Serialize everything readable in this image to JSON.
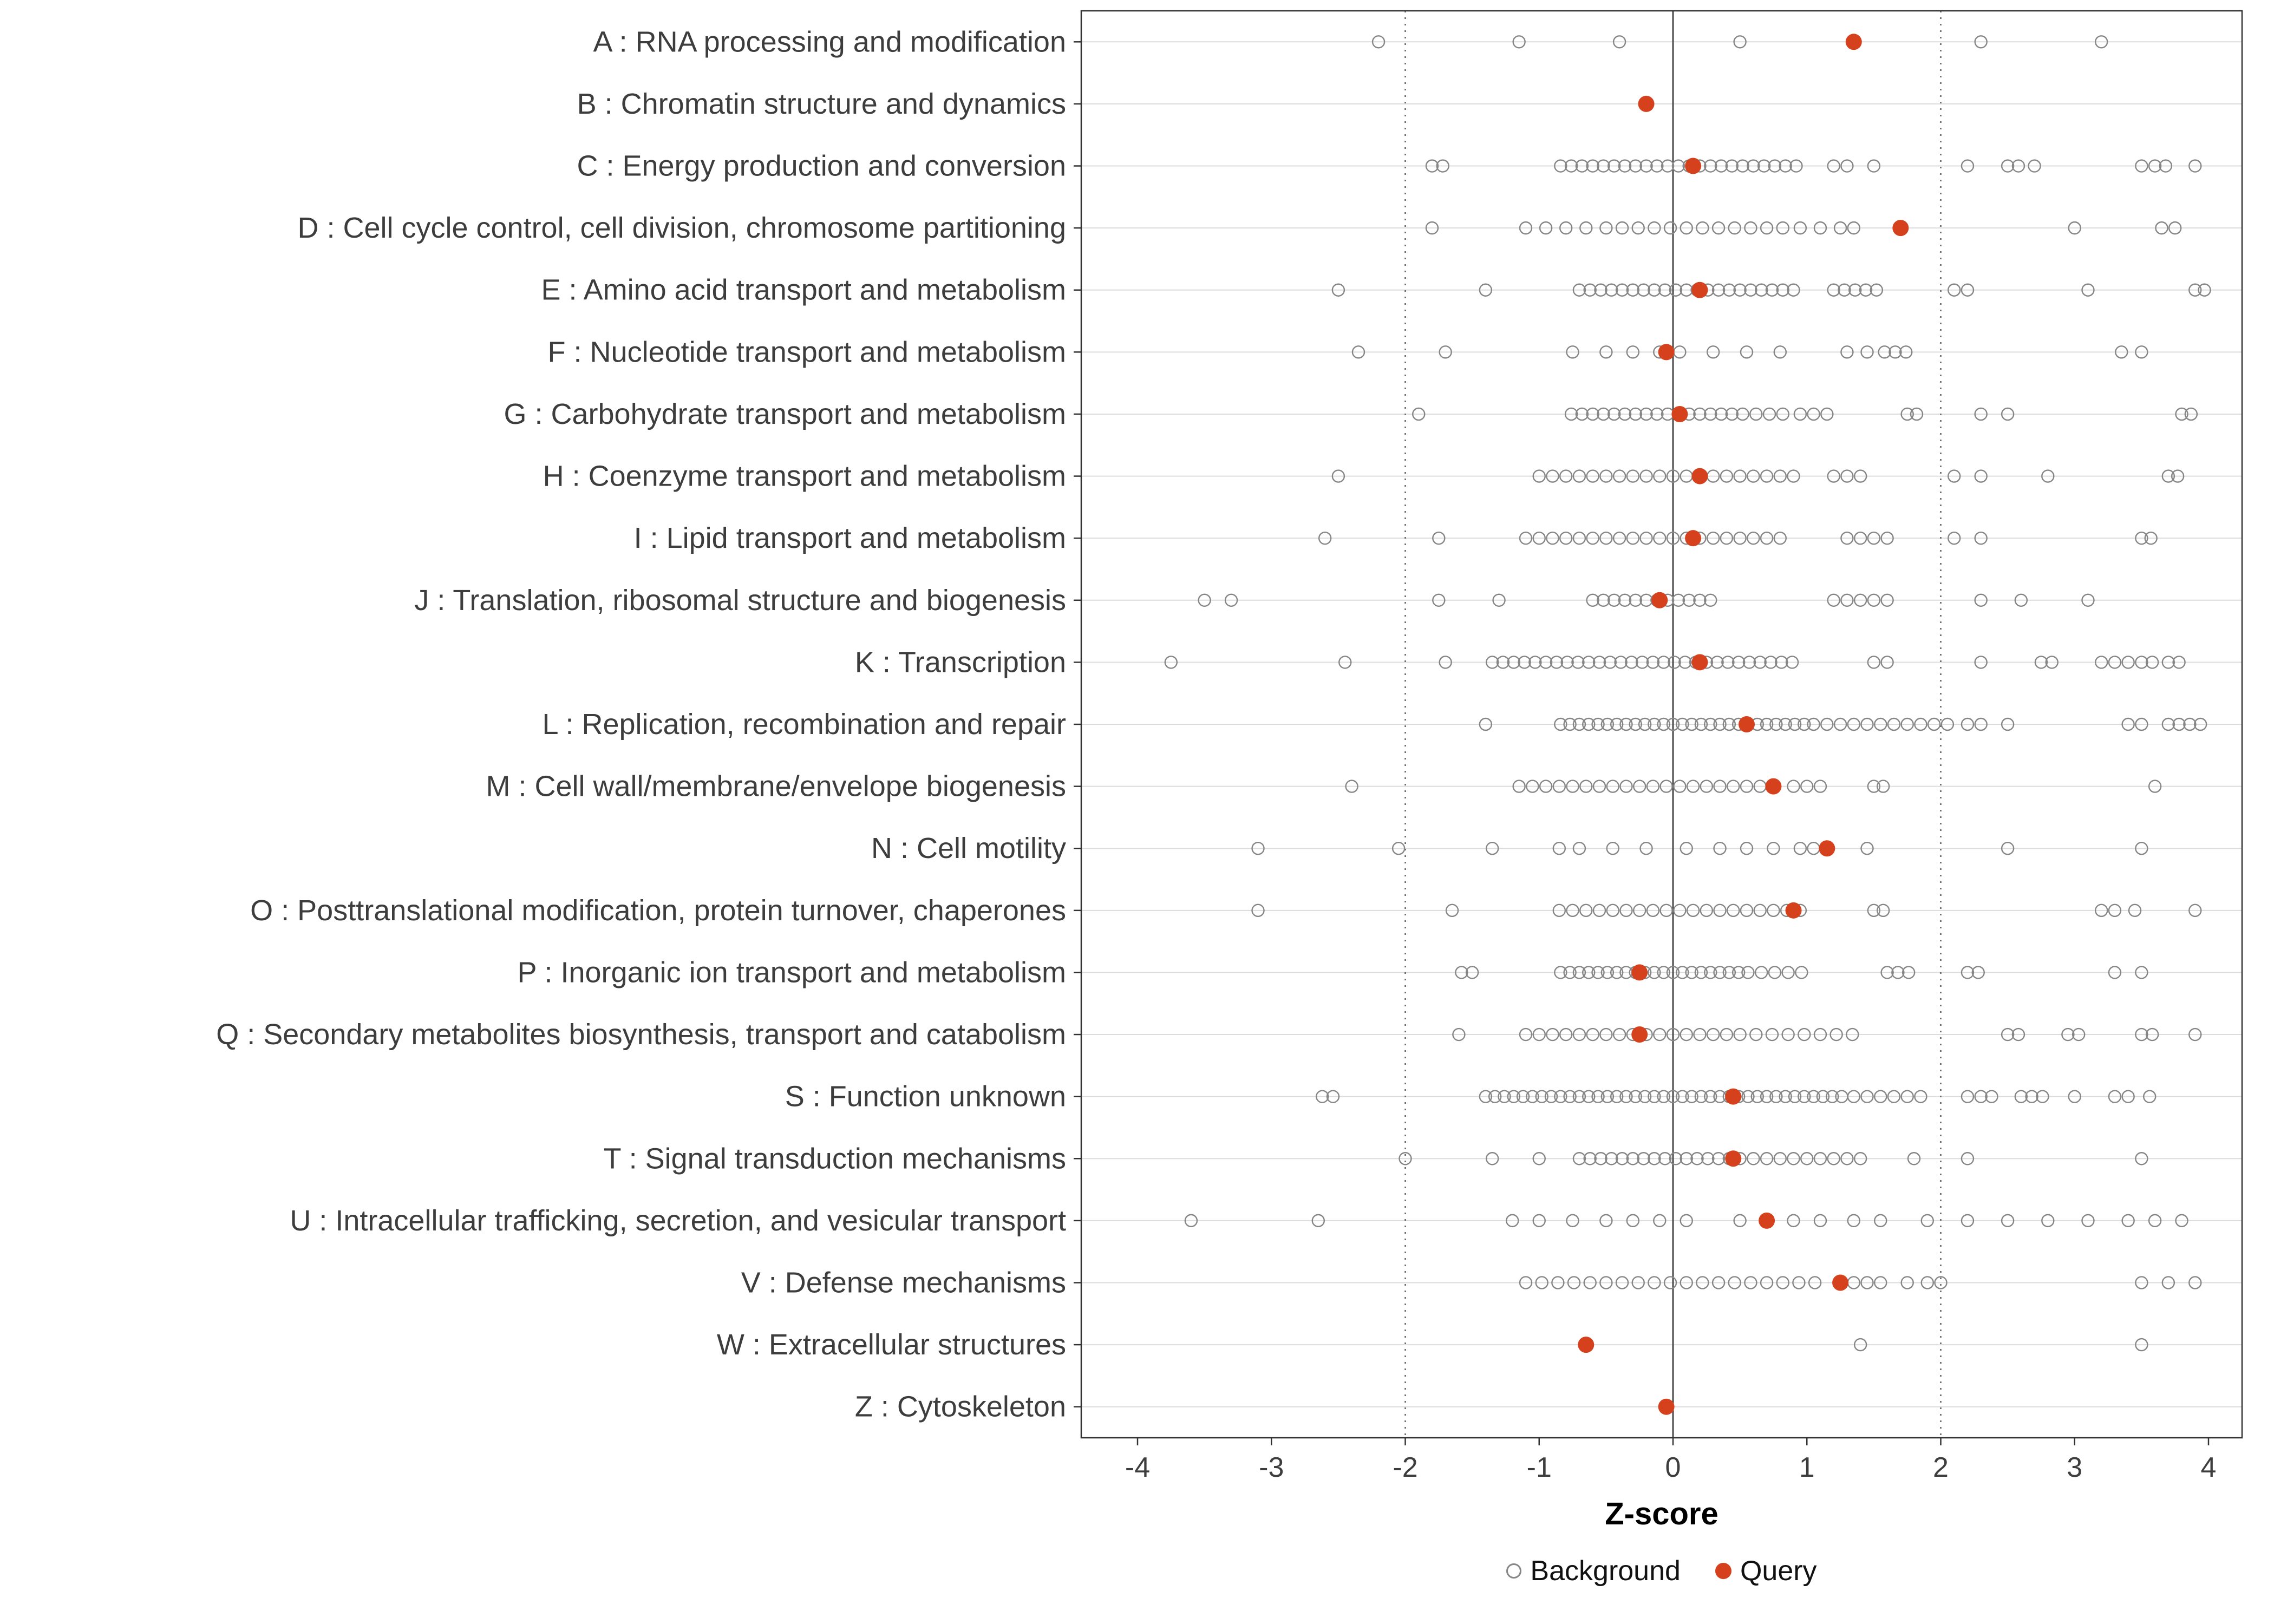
{
  "colors": {
    "query_point": "#d4411c",
    "background_point_stroke": "#868686",
    "gridline": "#dcdcdc",
    "panel_border": "#333333",
    "zero_line": "#4a4a4a",
    "dotted_line": "#5f5f5f",
    "axis_text": "#3d3d3d",
    "axis_title": "#000000"
  },
  "chart_data": {
    "type": "scatter",
    "title": "",
    "xlabel": "Z-score",
    "ylabel": "",
    "xlim": [
      -4.35,
      4.25
    ],
    "x_ticks": [
      -4,
      -3,
      -2,
      -1,
      0,
      1,
      2,
      3,
      4
    ],
    "grid": "horizontal-only",
    "reference_lines": {
      "solid": [
        0
      ],
      "dotted": [
        -2,
        2
      ]
    },
    "legend_position": "bottom",
    "legend_labels": [
      "Background",
      "Query"
    ],
    "rows": [
      {
        "label": "A : RNA processing and modification",
        "query": 1.35,
        "background": [
          -2.2,
          -1.15,
          -0.4,
          0.5,
          2.3,
          3.2
        ]
      },
      {
        "label": "B : Chromatin structure and dynamics",
        "query": -0.2,
        "background": []
      },
      {
        "label": "C : Energy production and conversion",
        "query": 0.15,
        "background": [
          -1.8,
          -1.72,
          -0.84,
          -0.76,
          -0.68,
          -0.6,
          -0.52,
          -0.44,
          -0.36,
          -0.28,
          -0.2,
          -0.12,
          -0.04,
          0.04,
          0.12,
          0.2,
          0.28,
          0.36,
          0.44,
          0.52,
          0.6,
          0.68,
          0.76,
          0.84,
          0.92,
          1.2,
          1.3,
          1.5,
          2.2,
          2.5,
          2.58,
          2.7,
          3.5,
          3.6,
          3.68,
          3.9
        ]
      },
      {
        "label": "D : Cell cycle control, cell division, chromosome partitioning",
        "query": 1.7,
        "background": [
          -1.8,
          -1.1,
          -0.95,
          -0.8,
          -0.65,
          -0.5,
          -0.38,
          -0.26,
          -0.14,
          -0.02,
          0.1,
          0.22,
          0.34,
          0.46,
          0.58,
          0.7,
          0.82,
          0.95,
          1.1,
          1.25,
          1.35,
          3.0,
          3.65,
          3.75
        ]
      },
      {
        "label": "E : Amino acid transport and metabolism",
        "query": 0.2,
        "background": [
          -2.5,
          -1.4,
          -0.7,
          -0.62,
          -0.54,
          -0.46,
          -0.38,
          -0.3,
          -0.22,
          -0.14,
          -0.06,
          0.02,
          0.1,
          0.18,
          0.26,
          0.34,
          0.42,
          0.5,
          0.58,
          0.66,
          0.74,
          0.82,
          0.9,
          1.2,
          1.28,
          1.36,
          1.44,
          1.52,
          2.1,
          2.2,
          3.1,
          3.9,
          3.97
        ]
      },
      {
        "label": "F : Nucleotide transport and metabolism",
        "query": -0.05,
        "background": [
          -2.35,
          -1.7,
          -0.75,
          -0.5,
          -0.3,
          -0.1,
          0.05,
          0.3,
          0.55,
          0.8,
          1.3,
          1.45,
          1.58,
          1.66,
          1.74,
          3.35,
          3.5
        ]
      },
      {
        "label": "G : Carbohydrate transport and metabolism",
        "query": 0.05,
        "background": [
          -1.9,
          -0.76,
          -0.68,
          -0.6,
          -0.52,
          -0.44,
          -0.36,
          -0.28,
          -0.2,
          -0.12,
          -0.04,
          0.04,
          0.12,
          0.2,
          0.28,
          0.36,
          0.44,
          0.52,
          0.62,
          0.72,
          0.82,
          0.95,
          1.05,
          1.15,
          1.75,
          1.82,
          2.3,
          2.5,
          3.8,
          3.87
        ]
      },
      {
        "label": "H : Coenzyme transport and metabolism",
        "query": 0.2,
        "background": [
          -2.5,
          -1.0,
          -0.9,
          -0.8,
          -0.7,
          -0.6,
          -0.5,
          -0.4,
          -0.3,
          -0.2,
          -0.1,
          0.0,
          0.1,
          0.2,
          0.3,
          0.4,
          0.5,
          0.6,
          0.7,
          0.8,
          0.9,
          1.2,
          1.3,
          1.4,
          2.1,
          2.3,
          2.8,
          3.7,
          3.77
        ]
      },
      {
        "label": "I : Lipid transport and metabolism",
        "query": 0.15,
        "background": [
          -2.6,
          -1.75,
          -1.1,
          -1.0,
          -0.9,
          -0.8,
          -0.7,
          -0.6,
          -0.5,
          -0.4,
          -0.3,
          -0.2,
          -0.1,
          0.0,
          0.1,
          0.2,
          0.3,
          0.4,
          0.5,
          0.6,
          0.7,
          0.8,
          1.3,
          1.4,
          1.5,
          1.6,
          2.1,
          2.3,
          3.5,
          3.57
        ]
      },
      {
        "label": "J : Translation, ribosomal structure and biogenesis",
        "query": -0.1,
        "background": [
          -3.5,
          -3.3,
          -1.75,
          -1.3,
          -0.6,
          -0.52,
          -0.44,
          -0.36,
          -0.28,
          -0.2,
          -0.12,
          -0.04,
          0.04,
          0.12,
          0.2,
          0.28,
          1.2,
          1.3,
          1.4,
          1.5,
          1.6,
          2.3,
          2.6,
          3.1
        ]
      },
      {
        "label": "K : Transcription",
        "query": 0.2,
        "background": [
          -3.75,
          -2.45,
          -1.7,
          -1.35,
          -1.27,
          -1.19,
          -1.11,
          -1.03,
          -0.95,
          -0.87,
          -0.79,
          -0.71,
          -0.63,
          -0.55,
          -0.47,
          -0.39,
          -0.31,
          -0.23,
          -0.15,
          -0.07,
          0.01,
          0.09,
          0.17,
          0.25,
          0.33,
          0.41,
          0.49,
          0.57,
          0.65,
          0.73,
          0.81,
          0.89,
          1.5,
          1.6,
          2.3,
          2.75,
          2.83,
          3.2,
          3.3,
          3.4,
          3.5,
          3.58,
          3.7,
          3.78
        ]
      },
      {
        "label": "L : Replication, recombination and repair",
        "query": 0.55,
        "background": [
          -1.4,
          -0.84,
          -0.77,
          -0.7,
          -0.63,
          -0.56,
          -0.49,
          -0.42,
          -0.35,
          -0.28,
          -0.21,
          -0.14,
          -0.07,
          0.0,
          0.07,
          0.14,
          0.21,
          0.28,
          0.35,
          0.42,
          0.49,
          0.56,
          0.63,
          0.7,
          0.77,
          0.84,
          0.91,
          0.98,
          1.05,
          1.15,
          1.25,
          1.35,
          1.45,
          1.55,
          1.65,
          1.75,
          1.85,
          1.95,
          2.05,
          2.2,
          2.3,
          2.5,
          3.4,
          3.5,
          3.7,
          3.78,
          3.86,
          3.94
        ]
      },
      {
        "label": "M : Cell wall/membrane/envelope biogenesis",
        "query": 0.75,
        "background": [
          -2.4,
          -1.15,
          -1.05,
          -0.95,
          -0.85,
          -0.75,
          -0.65,
          -0.55,
          -0.45,
          -0.35,
          -0.25,
          -0.15,
          -0.05,
          0.05,
          0.15,
          0.25,
          0.35,
          0.45,
          0.55,
          0.65,
          0.75,
          0.9,
          1.0,
          1.1,
          1.5,
          1.57,
          3.6
        ]
      },
      {
        "label": "N : Cell motility",
        "query": 1.15,
        "background": [
          -3.1,
          -2.05,
          -1.35,
          -0.85,
          -0.7,
          -0.45,
          -0.2,
          0.1,
          0.35,
          0.55,
          0.75,
          0.95,
          1.05,
          1.45,
          2.5,
          3.5
        ]
      },
      {
        "label": "O : Posttranslational modification, protein turnover, chaperones",
        "query": 0.9,
        "background": [
          -3.1,
          -1.65,
          -0.85,
          -0.75,
          -0.65,
          -0.55,
          -0.45,
          -0.35,
          -0.25,
          -0.15,
          -0.05,
          0.05,
          0.15,
          0.25,
          0.35,
          0.45,
          0.55,
          0.65,
          0.75,
          0.85,
          0.95,
          1.5,
          1.57,
          3.2,
          3.3,
          3.45,
          3.9
        ]
      },
      {
        "label": "P : Inorganic ion transport and metabolism",
        "query": -0.25,
        "background": [
          -1.58,
          -1.5,
          -0.84,
          -0.77,
          -0.7,
          -0.63,
          -0.56,
          -0.49,
          -0.42,
          -0.35,
          -0.28,
          -0.21,
          -0.14,
          -0.07,
          0.0,
          0.07,
          0.14,
          0.21,
          0.28,
          0.35,
          0.42,
          0.49,
          0.56,
          0.66,
          0.76,
          0.86,
          0.96,
          1.6,
          1.68,
          1.76,
          2.2,
          2.28,
          3.3,
          3.5
        ]
      },
      {
        "label": "Q : Secondary metabolites biosynthesis, transport and catabolism",
        "query": -0.25,
        "background": [
          -1.6,
          -1.1,
          -1.0,
          -0.9,
          -0.8,
          -0.7,
          -0.6,
          -0.5,
          -0.4,
          -0.3,
          -0.2,
          -0.1,
          0.0,
          0.1,
          0.2,
          0.3,
          0.4,
          0.5,
          0.62,
          0.74,
          0.86,
          0.98,
          1.1,
          1.22,
          1.34,
          2.5,
          2.58,
          2.95,
          3.03,
          3.5,
          3.58,
          3.9
        ]
      },
      {
        "label": "S : Function unknown",
        "query": 0.45,
        "background": [
          -2.62,
          -2.54,
          -1.4,
          -1.33,
          -1.26,
          -1.19,
          -1.12,
          -1.05,
          -0.98,
          -0.91,
          -0.84,
          -0.77,
          -0.7,
          -0.63,
          -0.56,
          -0.49,
          -0.42,
          -0.35,
          -0.28,
          -0.21,
          -0.14,
          -0.07,
          0.0,
          0.07,
          0.14,
          0.21,
          0.28,
          0.35,
          0.42,
          0.49,
          0.56,
          0.63,
          0.7,
          0.77,
          0.84,
          0.91,
          0.98,
          1.05,
          1.12,
          1.19,
          1.26,
          1.35,
          1.45,
          1.55,
          1.65,
          1.75,
          1.85,
          2.2,
          2.3,
          2.38,
          2.6,
          2.68,
          2.76,
          3.0,
          3.3,
          3.4,
          3.56
        ]
      },
      {
        "label": "T : Signal transduction mechanisms",
        "query": 0.45,
        "background": [
          -2.0,
          -1.35,
          -1.0,
          -0.7,
          -0.62,
          -0.54,
          -0.46,
          -0.38,
          -0.3,
          -0.22,
          -0.14,
          -0.06,
          0.02,
          0.1,
          0.18,
          0.26,
          0.34,
          0.42,
          0.5,
          0.6,
          0.7,
          0.8,
          0.9,
          1.0,
          1.1,
          1.2,
          1.3,
          1.4,
          1.8,
          2.2,
          3.5
        ]
      },
      {
        "label": "U : Intracellular trafficking, secretion, and vesicular transport",
        "query": 0.7,
        "background": [
          -3.6,
          -2.65,
          -1.2,
          -1.0,
          -0.75,
          -0.5,
          -0.3,
          -0.1,
          0.1,
          0.5,
          0.9,
          1.1,
          1.35,
          1.55,
          1.9,
          2.2,
          2.5,
          2.8,
          3.1,
          3.4,
          3.6,
          3.8
        ]
      },
      {
        "label": "V : Defense mechanisms",
        "query": 1.25,
        "background": [
          -1.1,
          -0.98,
          -0.86,
          -0.74,
          -0.62,
          -0.5,
          -0.38,
          -0.26,
          -0.14,
          -0.02,
          0.1,
          0.22,
          0.34,
          0.46,
          0.58,
          0.7,
          0.82,
          0.94,
          1.06,
          1.35,
          1.45,
          1.55,
          1.75,
          1.9,
          2.0,
          3.5,
          3.7,
          3.9
        ]
      },
      {
        "label": "W : Extracellular structures",
        "query": -0.65,
        "background": [
          1.4,
          3.5
        ]
      },
      {
        "label": "Z : Cytoskeleton",
        "query": -0.05,
        "background": []
      }
    ]
  }
}
